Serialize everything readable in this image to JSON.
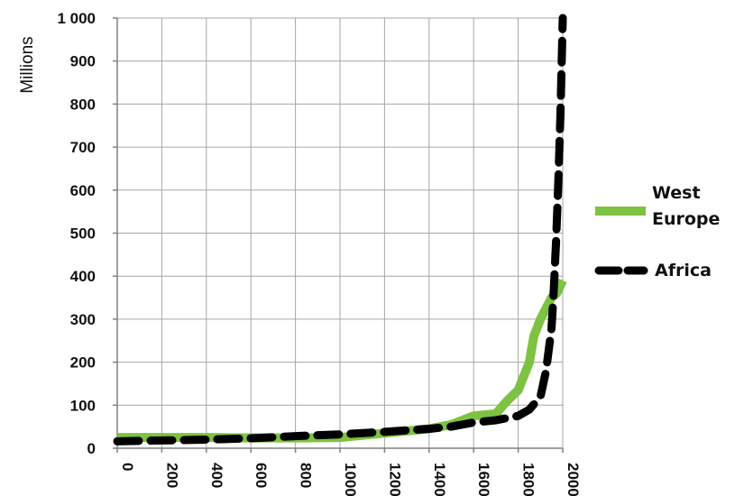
{
  "chart_data": {
    "type": "line",
    "title": "",
    "xlabel": "",
    "ylabel": "Millions",
    "xlim": [
      0,
      2000
    ],
    "ylim": [
      0,
      1000
    ],
    "x_ticks": [
      "0",
      "200",
      "400",
      "600",
      "800",
      "1000",
      "1200",
      "1400",
      "1600",
      "1800",
      "2000"
    ],
    "y_ticks": [
      "0",
      "100",
      "200",
      "300",
      "400",
      "500",
      "600",
      "700",
      "800",
      "900",
      "1 000"
    ],
    "grid": true,
    "legend_position": "right",
    "series": [
      {
        "name": "West Europe",
        "color": "#7dc242",
        "style": "solid",
        "x": [
          0,
          200,
          400,
          600,
          800,
          1000,
          1200,
          1400,
          1500,
          1600,
          1700,
          1750,
          1800,
          1850,
          1870,
          1900,
          1950,
          1973,
          2000
        ],
        "y": [
          25,
          25,
          25,
          24,
          24,
          25,
          35,
          45,
          55,
          75,
          80,
          110,
          135,
          200,
          260,
          300,
          350,
          360,
          390
        ]
      },
      {
        "name": "Africa",
        "color": "#000000",
        "style": "dashed",
        "x": [
          0,
          200,
          400,
          600,
          800,
          1000,
          1200,
          1400,
          1500,
          1600,
          1700,
          1800,
          1850,
          1900,
          1925,
          1950,
          1960,
          1970,
          1980,
          1990,
          2000
        ],
        "y": [
          16,
          18,
          20,
          23,
          28,
          32,
          38,
          45,
          50,
          60,
          65,
          75,
          90,
          120,
          180,
          280,
          370,
          480,
          620,
          780,
          1000
        ]
      }
    ]
  }
}
